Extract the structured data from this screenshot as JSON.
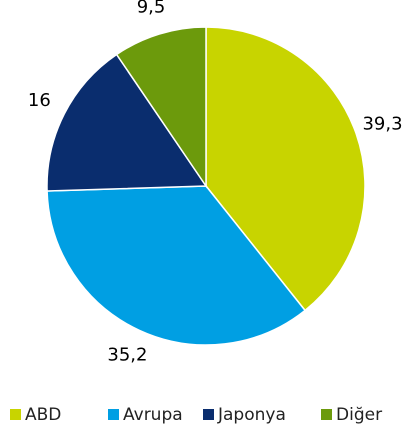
{
  "chart_data": {
    "type": "pie",
    "categories": [
      "ABD",
      "Avrupa",
      "Japonya",
      "Diğer"
    ],
    "values": [
      39.3,
      35.2,
      16,
      9.5
    ],
    "value_labels": [
      "39,3",
      "35,2",
      "16",
      "9,5"
    ],
    "colors": [
      "#c8d400",
      "#009fe3",
      "#0a2d6e",
      "#6c9a0c"
    ],
    "legend": "bottom"
  }
}
